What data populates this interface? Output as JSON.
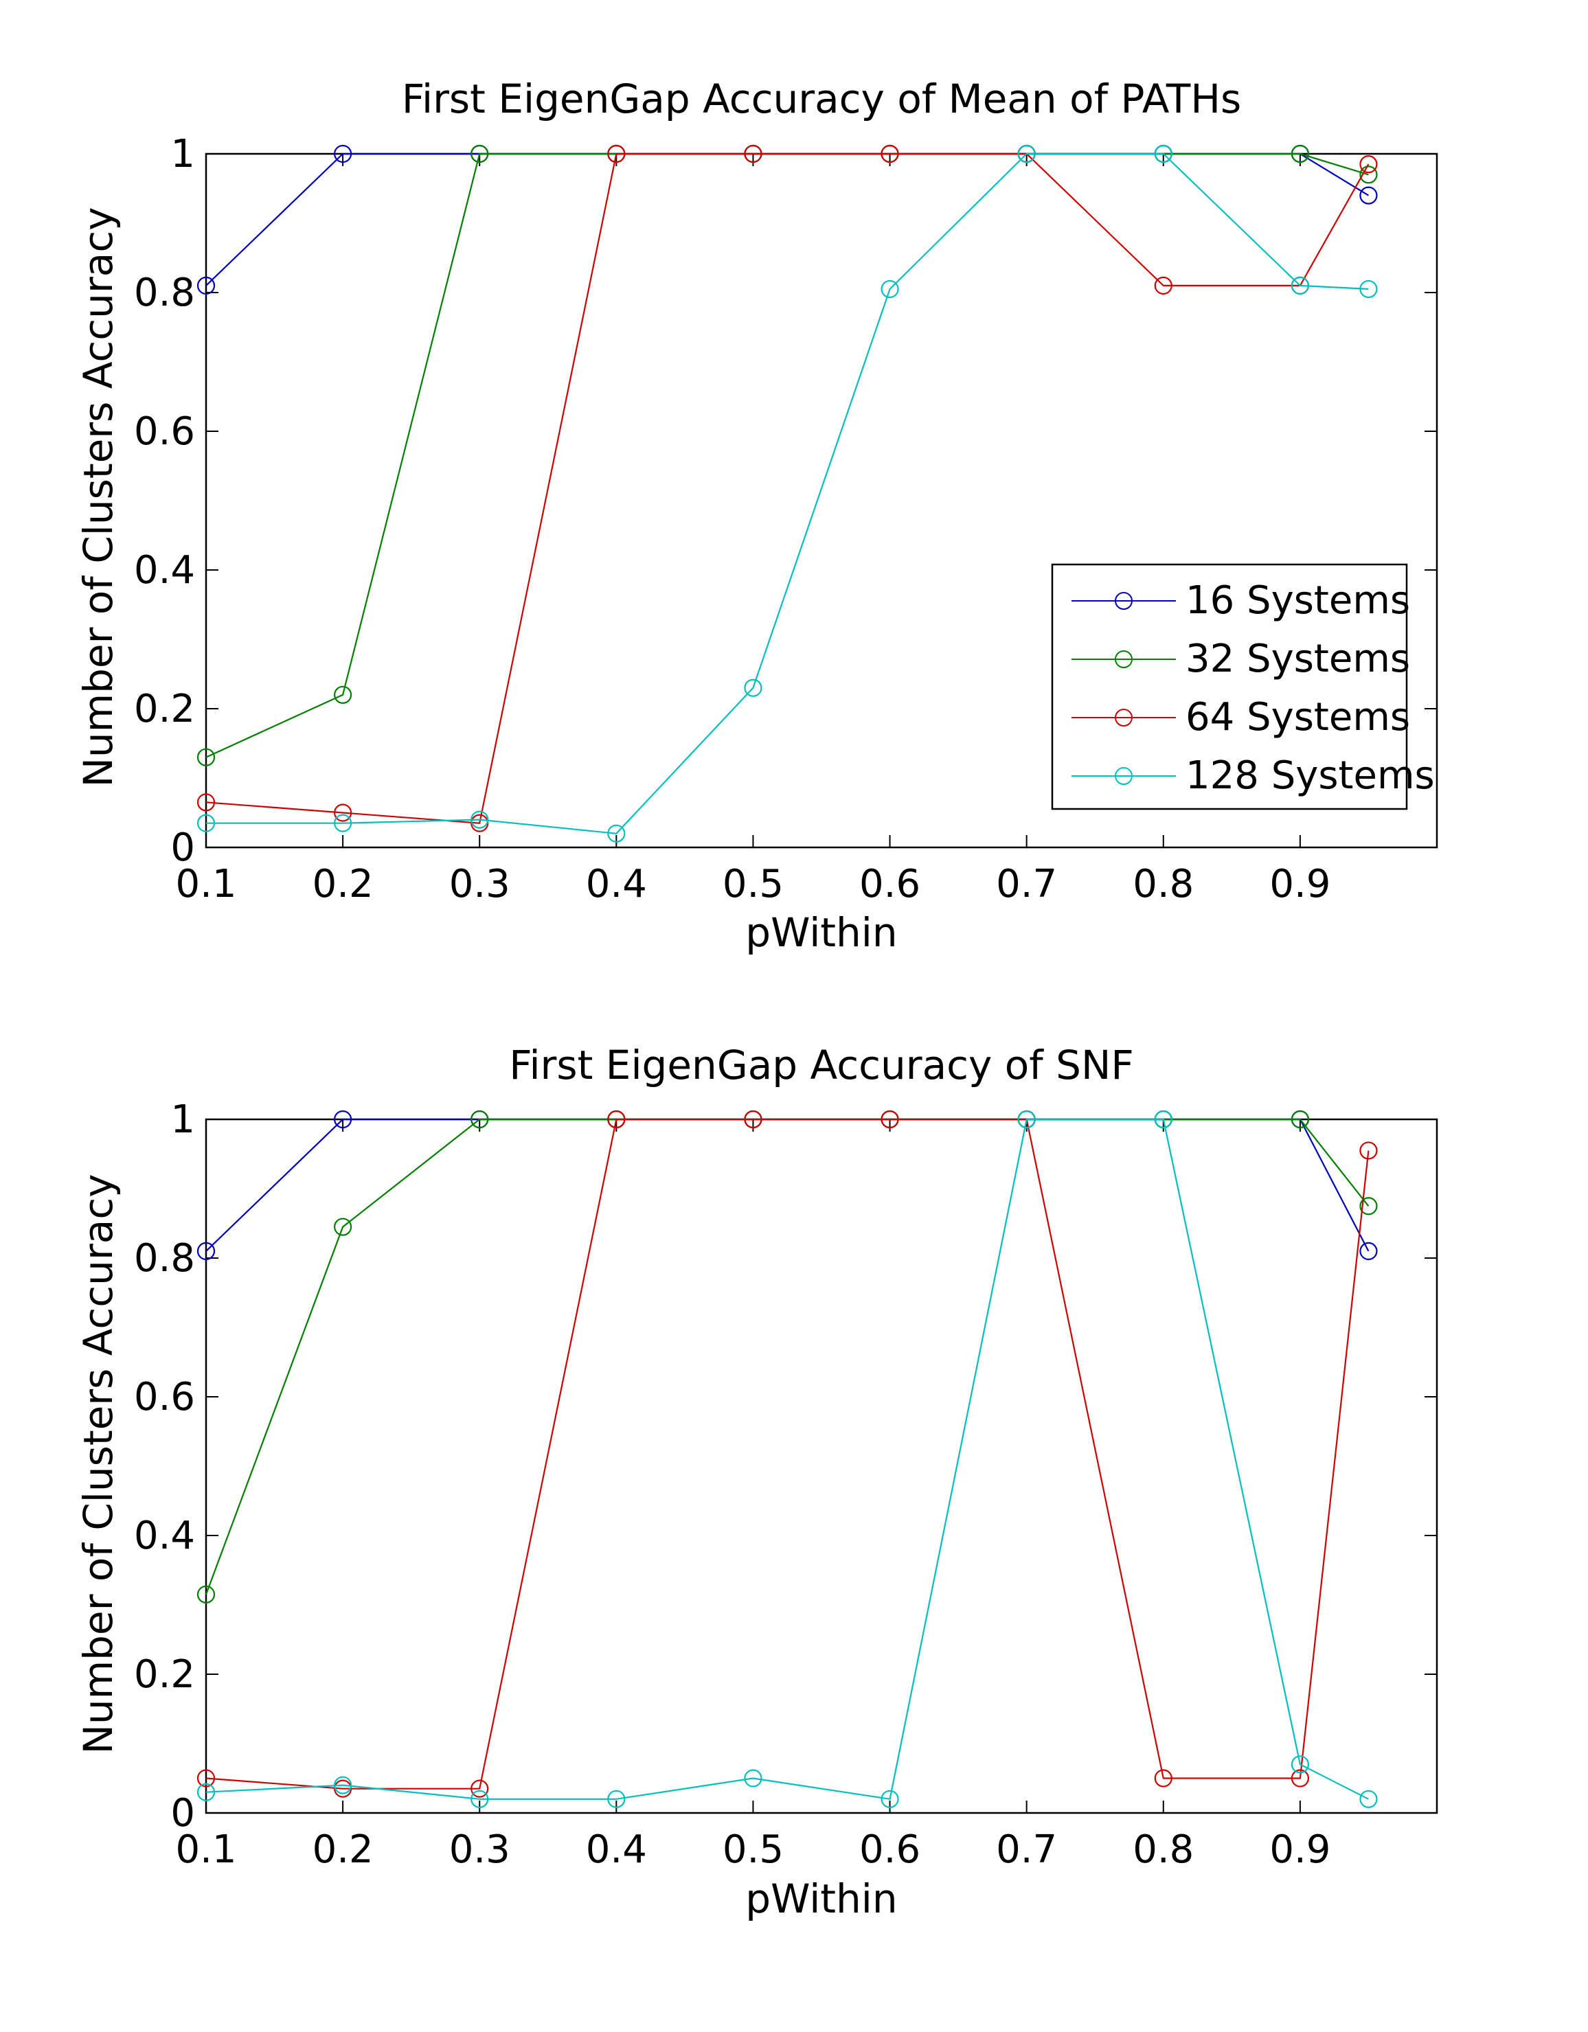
{
  "colors": {
    "background": "#ffffff",
    "axes": "#000000",
    "series": [
      "#0000bf",
      "#007f00",
      "#cf0000",
      "#00bfbf"
    ]
  },
  "chart_data": [
    {
      "type": "line",
      "title": "First EigenGap Accuracy of Mean of PATHs",
      "xlabel": "pWithin",
      "ylabel": "Number of Clusters Accuracy",
      "xlim": [
        0.1,
        1.0
      ],
      "ylim": [
        0,
        1
      ],
      "xticks": [
        "0.1",
        "0.2",
        "0.3",
        "0.4",
        "0.5",
        "0.6",
        "0.7",
        "0.8",
        "0.9"
      ],
      "yticks": [
        "0",
        "0.2",
        "0.4",
        "0.6",
        "0.8",
        "1"
      ],
      "marker": "circle",
      "grid": false,
      "legend": {
        "position": "lower-right",
        "entries": [
          "16 Systems",
          "32 Systems",
          "64 Systems",
          "128 Systems"
        ]
      },
      "x": [
        0.1,
        0.2,
        0.3,
        0.4,
        0.5,
        0.6,
        0.7,
        0.8,
        0.9,
        0.95
      ],
      "series": [
        {
          "name": "16 Systems",
          "values": [
            0.81,
            1,
            1,
            1,
            1,
            1,
            1,
            1,
            1,
            0.94
          ]
        },
        {
          "name": "32 Systems",
          "values": [
            0.13,
            0.22,
            1,
            1,
            1,
            1,
            1,
            1,
            1,
            0.97
          ]
        },
        {
          "name": "64 Systems",
          "values": [
            0.065,
            0.05,
            0.035,
            1,
            1,
            1,
            1,
            0.81,
            0.81,
            0.985
          ]
        },
        {
          "name": "128 Systems",
          "values": [
            0.035,
            0.035,
            0.04,
            0.02,
            0.23,
            0.805,
            1,
            1,
            0.81,
            0.805
          ]
        }
      ]
    },
    {
      "type": "line",
      "title": "First EigenGap Accuracy of SNF",
      "xlabel": "pWithin",
      "ylabel": "Number of Clusters Accuracy",
      "xlim": [
        0.1,
        1.0
      ],
      "ylim": [
        0,
        1
      ],
      "xticks": [
        "0.1",
        "0.2",
        "0.3",
        "0.4",
        "0.5",
        "0.6",
        "0.7",
        "0.8",
        "0.9"
      ],
      "yticks": [
        "0",
        "0.2",
        "0.4",
        "0.6",
        "0.8",
        "1"
      ],
      "marker": "circle",
      "grid": false,
      "x": [
        0.1,
        0.2,
        0.3,
        0.4,
        0.5,
        0.6,
        0.7,
        0.8,
        0.9,
        0.95
      ],
      "series": [
        {
          "name": "16 Systems",
          "values": [
            0.81,
            1,
            1,
            1,
            1,
            1,
            1,
            1,
            1,
            0.81
          ]
        },
        {
          "name": "32 Systems",
          "values": [
            0.315,
            0.845,
            1,
            1,
            1,
            1,
            1,
            1,
            1,
            0.875
          ]
        },
        {
          "name": "64 Systems",
          "values": [
            0.05,
            0.035,
            0.035,
            1,
            1,
            1,
            1,
            0.05,
            0.05,
            0.955
          ]
        },
        {
          "name": "128 Systems",
          "values": [
            0.03,
            0.04,
            0.02,
            0.02,
            0.05,
            0.02,
            1,
            1,
            0.07,
            0.02
          ]
        }
      ]
    }
  ]
}
